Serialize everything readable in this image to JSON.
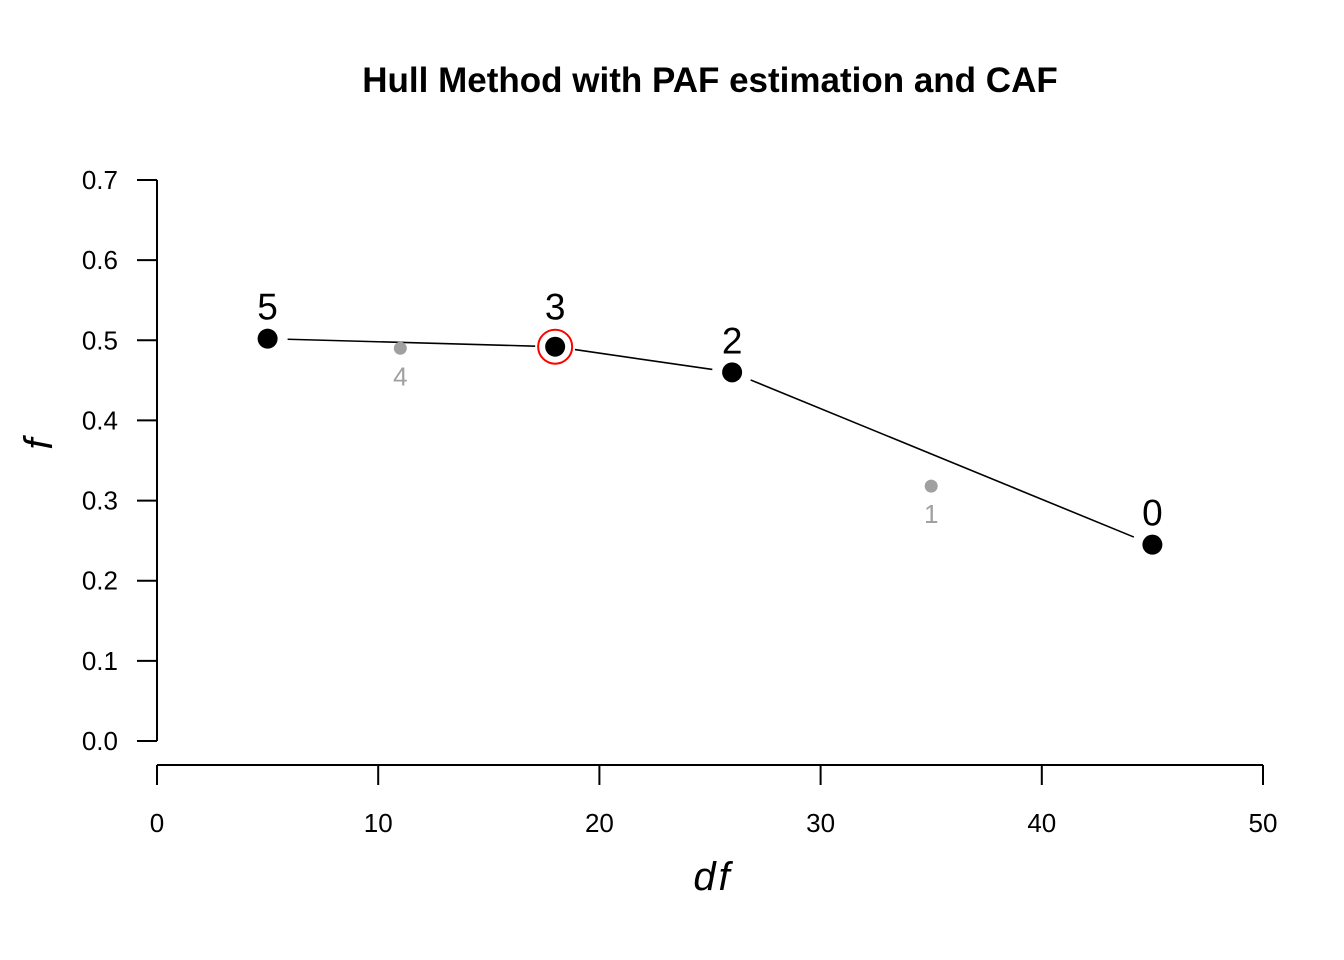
{
  "chart_data": {
    "type": "scatter",
    "title": "Hull Method with PAF estimation and CAF",
    "xlabel": "df",
    "ylabel": "f",
    "xlim": [
      0,
      50
    ],
    "ylim": [
      0,
      0.7
    ],
    "x_ticks": [
      0,
      10,
      20,
      30,
      40,
      50
    ],
    "y_ticks": [
      "0.0",
      "0.1",
      "0.2",
      "0.3",
      "0.4",
      "0.5",
      "0.6",
      "0.7"
    ],
    "grid": false,
    "legend": "none",
    "points": [
      {
        "label": "5",
        "x": 5,
        "y": 0.502,
        "on_hull": true,
        "selected": false
      },
      {
        "label": "4",
        "x": 11,
        "y": 0.49,
        "on_hull": false,
        "selected": false
      },
      {
        "label": "3",
        "x": 18,
        "y": 0.492,
        "on_hull": true,
        "selected": true
      },
      {
        "label": "2",
        "x": 26,
        "y": 0.46,
        "on_hull": true,
        "selected": false
      },
      {
        "label": "1",
        "x": 35,
        "y": 0.318,
        "on_hull": false,
        "selected": false
      },
      {
        "label": "0",
        "x": 45,
        "y": 0.245,
        "on_hull": true,
        "selected": false
      }
    ],
    "hull_series": [
      "5",
      "3",
      "2",
      "0"
    ],
    "colors": {
      "hull_point": "#000000",
      "off_hull_point": "#a0a0a0",
      "selected": "#ff0000",
      "line": "#000000"
    }
  }
}
